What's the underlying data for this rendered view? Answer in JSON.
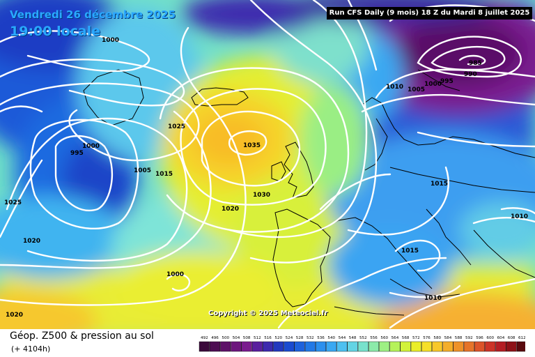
{
  "header": {
    "valid_date": "Vendredi 26 décembre 2025",
    "local_time": "19:00 locale",
    "run_info": "Run CFS Daily (9 mois) 18 Z du Mardi 8 juillet 2025"
  },
  "copyright": "Copyright © 2025 Meteociel.fr",
  "footer": {
    "product": "Géop. Z500 & pression au sol",
    "lead": "(+ 4104h)"
  },
  "colorbar": {
    "labels": [
      "492",
      "496",
      "500",
      "504",
      "508",
      "512",
      "516",
      "520",
      "524",
      "528",
      "532",
      "536",
      "540",
      "544",
      "548",
      "552",
      "556",
      "560",
      "564",
      "568",
      "572",
      "576",
      "580",
      "584",
      "588",
      "592",
      "596",
      "600",
      "604",
      "608",
      "612"
    ],
    "colors": [
      "#3b0a3b",
      "#4d0d52",
      "#5e1168",
      "#6d167d",
      "#7a1b8e",
      "#5a1f9e",
      "#3d2aae",
      "#2339be",
      "#1a4bd0",
      "#1e62dc",
      "#2279e6",
      "#2c90ee",
      "#3aa8f2",
      "#4ec0f0",
      "#64d4e4",
      "#78e2cc",
      "#8ceaaa",
      "#9ef084",
      "#b6f25a",
      "#d2f23a",
      "#eaee2a",
      "#f6e02a",
      "#f8c82a",
      "#f4ae2a",
      "#ee922a",
      "#e6742a",
      "#dc542a",
      "#cc3428",
      "#b41e24",
      "#8e1218",
      "#5a0a0e"
    ]
  },
  "pressure_labels": [
    {
      "text": "1000"
    },
    {
      "text": "985"
    },
    {
      "text": "990"
    },
    {
      "text": "995"
    },
    {
      "text": "1000"
    },
    {
      "text": "1005"
    },
    {
      "text": "1010"
    },
    {
      "text": "1025"
    },
    {
      "text": "1035"
    },
    {
      "text": "1000"
    },
    {
      "text": "995"
    },
    {
      "text": "1005"
    },
    {
      "text": "1015"
    },
    {
      "text": "1015"
    },
    {
      "text": "1030"
    },
    {
      "text": "1020"
    },
    {
      "text": "1025"
    },
    {
      "text": "1020"
    },
    {
      "text": "1015"
    },
    {
      "text": "1010"
    },
    {
      "text": "1000"
    },
    {
      "text": "1010"
    },
    {
      "text": "1020"
    }
  ]
}
